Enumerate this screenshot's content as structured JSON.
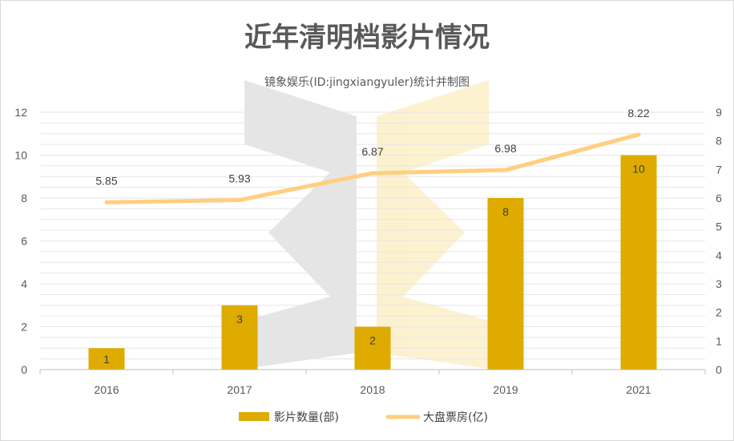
{
  "chart_data": {
    "type": "bar",
    "title": "近年清明档影片情况",
    "subtitle": "镜象娱乐(ID:jingxiangyuler)统计并制图",
    "categories": [
      "2016",
      "2017",
      "2018",
      "2019",
      "2021"
    ],
    "series": [
      {
        "name": "影片数量(部)",
        "type": "bar",
        "axis": "left",
        "color": "#dfab00",
        "values": [
          1,
          3,
          2,
          8,
          10
        ],
        "labels": [
          "1",
          "3",
          "2",
          "8",
          "10"
        ]
      },
      {
        "name": "大盘票房(亿)",
        "type": "line",
        "axis": "right",
        "color": "#ffcf7f",
        "values": [
          5.85,
          5.93,
          6.87,
          6.98,
          8.22
        ],
        "labels": [
          "5.85",
          "5.93",
          "6.87",
          "6.98",
          "8.22"
        ]
      }
    ],
    "y_left": {
      "min": 0,
      "max": 12,
      "ticks": [
        "0",
        "2",
        "4",
        "6",
        "8",
        "10",
        "12"
      ]
    },
    "y_right": {
      "min": 0,
      "max": 9,
      "ticks": [
        "0",
        "1",
        "2",
        "3",
        "4",
        "5",
        "6",
        "7",
        "8",
        "9"
      ]
    },
    "grid": true,
    "legend": "bottom"
  }
}
